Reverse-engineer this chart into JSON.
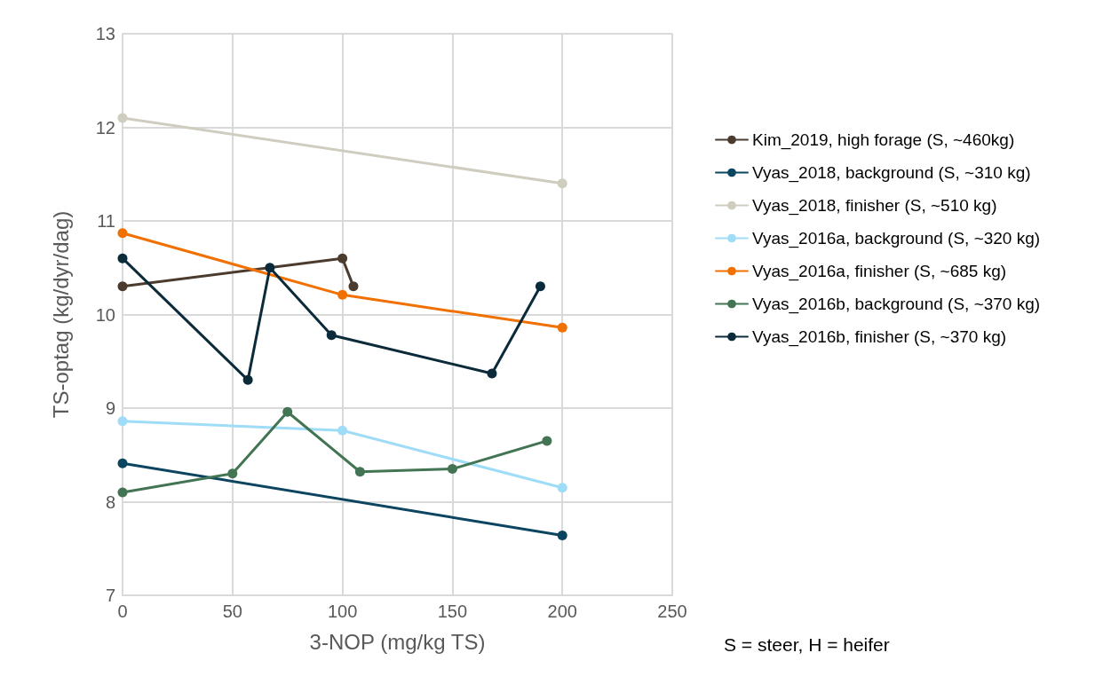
{
  "chart_data": {
    "type": "line",
    "xlabel": "3-NOP (mg/kg TS)",
    "ylabel": "TS-optag (kg/dyr/dag)",
    "xlim": [
      0,
      250
    ],
    "xticks": [
      0,
      50,
      100,
      150,
      200,
      250
    ],
    "ylim": [
      7,
      13
    ],
    "yticks": [
      7,
      8,
      9,
      10,
      11,
      12,
      13
    ],
    "grid": true,
    "legend": "right",
    "marker": "circle",
    "line_style": "solid",
    "annotations": [
      "S = steer, H = heifer"
    ],
    "series": [
      {
        "name": "Kim_2019, high forage (S, ~460kg)",
        "color": "#4a3b2e",
        "x": [
          0,
          100,
          105
        ],
        "values": [
          10.3,
          10.6,
          10.3
        ]
      },
      {
        "name": "Vyas_2018, background (S, ~310 kg)",
        "color": "#0b4560",
        "x": [
          0,
          200
        ],
        "values": [
          8.41,
          7.64
        ]
      },
      {
        "name": "Vyas_2018, finisher (S, ~510 kg)",
        "color": "#cfcdbf",
        "x": [
          0,
          200
        ],
        "values": [
          12.1,
          11.4
        ]
      },
      {
        "name": "Vyas_2016a, background (S, ~320 kg)",
        "color": "#9fdcf7",
        "x": [
          0,
          100,
          200
        ],
        "values": [
          8.86,
          8.76,
          8.15
        ]
      },
      {
        "name": "Vyas_2016a, finisher (S, ~685 kg)",
        "color": "#f07000",
        "x": [
          0,
          100,
          200
        ],
        "values": [
          10.87,
          10.21,
          9.86
        ]
      },
      {
        "name": "Vyas_2016b, background (S, ~370 kg)",
        "color": "#437453",
        "x": [
          0,
          50,
          75,
          108,
          150,
          193
        ],
        "values": [
          8.1,
          8.3,
          8.96,
          8.32,
          8.35,
          8.65
        ]
      },
      {
        "name": "Vyas_2016b, finisher (S, ~370 kg)",
        "color": "#0b2a3a",
        "x": [
          0,
          57,
          67,
          95,
          168,
          190
        ],
        "values": [
          10.6,
          9.3,
          10.5,
          9.78,
          9.37,
          10.3
        ]
      }
    ]
  }
}
